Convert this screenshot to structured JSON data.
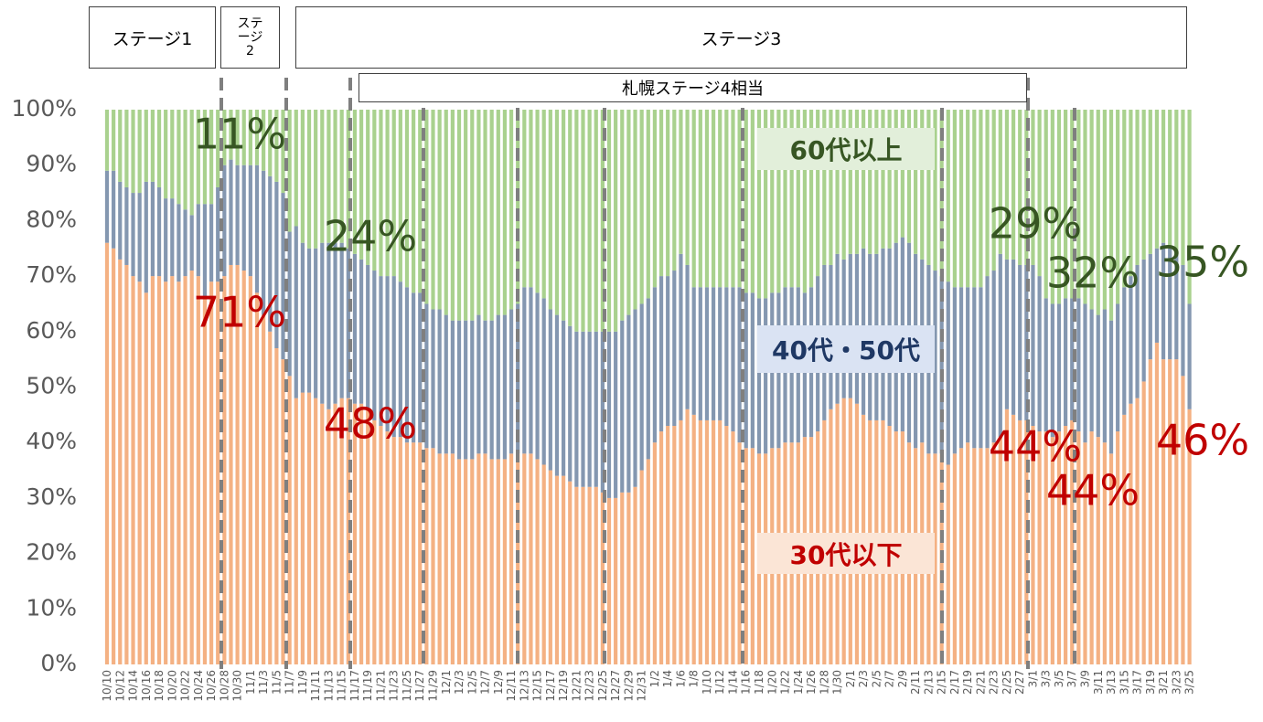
{
  "chart_data": {
    "type": "stacked-bar",
    "stages": [
      "ステージ1",
      "ステージ2",
      "ステージ3",
      "札幌ステージ4相当"
    ],
    "annotations": [
      {
        "text": "11%",
        "series": 2
      },
      {
        "text": "71%",
        "series": 0
      },
      {
        "text": "24%",
        "series": 2
      },
      {
        "text": "48%",
        "series": 0
      },
      {
        "text": "29%",
        "series": 2
      },
      {
        "text": "44%",
        "series": 0
      },
      {
        "text": "32%",
        "series": 2
      },
      {
        "text": "44%",
        "series": 0
      },
      {
        "text": "35%",
        "series": 2
      },
      {
        "text": "46%",
        "series": 0
      }
    ],
    "categories": [
      "10/10",
      null,
      "10/12",
      null,
      "10/14",
      null,
      "10/16",
      null,
      "10/18",
      null,
      "10/20",
      null,
      "10/22",
      null,
      "10/24",
      null,
      "10/26",
      null,
      "10/28",
      null,
      "10/30",
      null,
      "11/1",
      null,
      "11/3",
      null,
      "11/5",
      null,
      "11/7",
      null,
      "11/9",
      null,
      "11/11",
      null,
      "11/13",
      null,
      "11/15",
      null,
      "11/17",
      null,
      "11/19",
      null,
      "11/21",
      null,
      "11/23",
      null,
      "11/25",
      null,
      "11/27",
      null,
      "11/29",
      null,
      "12/1",
      null,
      "12/3",
      null,
      "12/5",
      null,
      "12/7",
      null,
      "12/9",
      null,
      "12/11",
      null,
      "12/13",
      null,
      "12/15",
      null,
      "12/17",
      null,
      "12/19",
      null,
      "12/21",
      null,
      "12/23",
      null,
      "12/25",
      null,
      "12/27",
      null,
      "12/29",
      null,
      "12/31",
      null,
      "1/2",
      null,
      "1/4",
      null,
      "1/6",
      null,
      "1/8",
      null,
      "1/10",
      null,
      "1/12",
      null,
      "1/14",
      null,
      "1/16",
      null,
      "1/18",
      null,
      "1/20",
      null,
      "1/22",
      null,
      "1/24",
      null,
      "1/26",
      null,
      "1/28",
      null,
      "1/30",
      null,
      "2/1",
      null,
      "2/3",
      null,
      "2/5",
      null,
      "2/7",
      null,
      "2/9",
      null,
      "2/11",
      null,
      "2/13",
      null,
      "2/15",
      null,
      "2/17",
      null,
      "2/19",
      null,
      "2/21",
      null,
      "2/23",
      null,
      "2/25",
      null,
      "2/27",
      null,
      "3/1",
      null,
      "3/3",
      null,
      "3/5",
      null,
      "3/7",
      null,
      "3/9",
      null,
      "3/11",
      null,
      "3/13",
      null,
      "3/15",
      null,
      "3/17",
      null,
      "3/19",
      null,
      "3/21",
      null,
      "3/23",
      null,
      "3/25"
    ],
    "series": [
      {
        "name": "30代以下",
        "color": "#f4b183",
        "label_color": "#c00000",
        "box_color": "#fbe5d6",
        "values": [
          76,
          75,
          73,
          72,
          70,
          69,
          67,
          70,
          70,
          69,
          70,
          69,
          70,
          71,
          70,
          66,
          69,
          69,
          70,
          72,
          72,
          71,
          70,
          67,
          63,
          60,
          57,
          55,
          52,
          48,
          49,
          49,
          48,
          47,
          46,
          47,
          48,
          48,
          47,
          47,
          46,
          44,
          43,
          42,
          41,
          41,
          40,
          40,
          40,
          39,
          39,
          38,
          38,
          38,
          37,
          37,
          37,
          38,
          38,
          37,
          37,
          37,
          38,
          38,
          38,
          38,
          37,
          36,
          35,
          34,
          34,
          33,
          32,
          32,
          32,
          32,
          31,
          30,
          30,
          31,
          31,
          32,
          35,
          37,
          40,
          42,
          43,
          43,
          44,
          46,
          45,
          44,
          44,
          44,
          44,
          43,
          42,
          40,
          39,
          39,
          38,
          38,
          39,
          39,
          40,
          40,
          40,
          41,
          41,
          42,
          44,
          46,
          47,
          48,
          48,
          47,
          45,
          44,
          44,
          44,
          43,
          42,
          42,
          40,
          39,
          40,
          38,
          38,
          38,
          36,
          38,
          39,
          40,
          39,
          39,
          39,
          40,
          41,
          46,
          45,
          44,
          44,
          43,
          42,
          42,
          41,
          42,
          43,
          44,
          42,
          40,
          42,
          41,
          40,
          38,
          42,
          45,
          47,
          48,
          51,
          55,
          58,
          55,
          55,
          55,
          52,
          46
        ]
      },
      {
        "name": "40代・50代",
        "color": "#8497b0",
        "label_color": "#1f3864",
        "box_color": "#dae3f3",
        "values": [
          13,
          14,
          14,
          14,
          15,
          16,
          20,
          17,
          16,
          15,
          14,
          14,
          12,
          10,
          13,
          17,
          14,
          17,
          20,
          19,
          18,
          19,
          20,
          23,
          26,
          28,
          30,
          30,
          26,
          31,
          27,
          26,
          27,
          29,
          30,
          29,
          28,
          27,
          27,
          26,
          26,
          27,
          27,
          28,
          29,
          28,
          28,
          27,
          27,
          26,
          25,
          26,
          25,
          24,
          25,
          25,
          25,
          25,
          24,
          25,
          26,
          26,
          26,
          27,
          30,
          30,
          30,
          30,
          29,
          29,
          28,
          28,
          28,
          28,
          28,
          28,
          29,
          30,
          30,
          31,
          32,
          32,
          30,
          29,
          28,
          28,
          27,
          28,
          30,
          26,
          23,
          24,
          24,
          24,
          24,
          25,
          26,
          28,
          28,
          28,
          28,
          28,
          28,
          28,
          28,
          28,
          28,
          26,
          27,
          28,
          28,
          26,
          27,
          25,
          26,
          27,
          30,
          30,
          30,
          31,
          32,
          34,
          35,
          36,
          35,
          33,
          34,
          33,
          32,
          33,
          30,
          29,
          28,
          29,
          29,
          31,
          31,
          33,
          27,
          28,
          28,
          28,
          29,
          28,
          24,
          24,
          23,
          23,
          22,
          24,
          25,
          22,
          22,
          24,
          24,
          23,
          23,
          23,
          24,
          22,
          19,
          17,
          21,
          20,
          19,
          20,
          19
        ]
      },
      {
        "name": "60代以上",
        "color": "#a9d18e",
        "label_color": "#375623",
        "box_color": "#e2efda",
        "values": [
          11,
          11,
          13,
          14,
          15,
          15,
          13,
          13,
          14,
          16,
          16,
          17,
          18,
          19,
          17,
          17,
          17,
          14,
          10,
          9,
          10,
          10,
          10,
          10,
          11,
          12,
          13,
          15,
          22,
          21,
          24,
          25,
          25,
          24,
          24,
          24,
          24,
          25,
          26,
          27,
          28,
          29,
          30,
          30,
          30,
          31,
          32,
          33,
          33,
          35,
          36,
          36,
          37,
          38,
          38,
          38,
          38,
          37,
          38,
          38,
          37,
          37,
          36,
          35,
          32,
          32,
          33,
          34,
          36,
          37,
          38,
          39,
          40,
          40,
          40,
          40,
          40,
          40,
          40,
          38,
          37,
          36,
          35,
          34,
          32,
          30,
          30,
          29,
          26,
          28,
          32,
          32,
          32,
          32,
          32,
          32,
          32,
          32,
          33,
          33,
          34,
          34,
          33,
          33,
          32,
          32,
          32,
          33,
          32,
          30,
          28,
          28,
          26,
          27,
          26,
          26,
          25,
          26,
          26,
          25,
          25,
          24,
          23,
          24,
          26,
          27,
          28,
          29,
          30,
          31,
          32,
          32,
          32,
          32,
          32,
          30,
          29,
          26,
          27,
          27,
          28,
          28,
          28,
          30,
          34,
          35,
          35,
          34,
          34,
          34,
          35,
          36,
          37,
          36,
          38,
          35,
          32,
          30,
          28,
          27,
          26,
          25,
          24,
          25,
          26,
          28,
          35
        ]
      }
    ],
    "ylim": [
      0,
      100
    ],
    "yticks": [
      {
        "value": 0,
        "label": "0%"
      },
      {
        "value": 10,
        "label": "10%"
      },
      {
        "value": 20,
        "label": "20%"
      },
      {
        "value": 30,
        "label": "30%"
      },
      {
        "value": 40,
        "label": "40%"
      },
      {
        "value": 50,
        "label": "50%"
      },
      {
        "value": 60,
        "label": "60%"
      },
      {
        "value": 70,
        "label": "70%"
      },
      {
        "value": 80,
        "label": "80%"
      },
      {
        "value": 90,
        "label": "90%"
      },
      {
        "value": 100,
        "label": "100%"
      }
    ],
    "grid": false
  }
}
